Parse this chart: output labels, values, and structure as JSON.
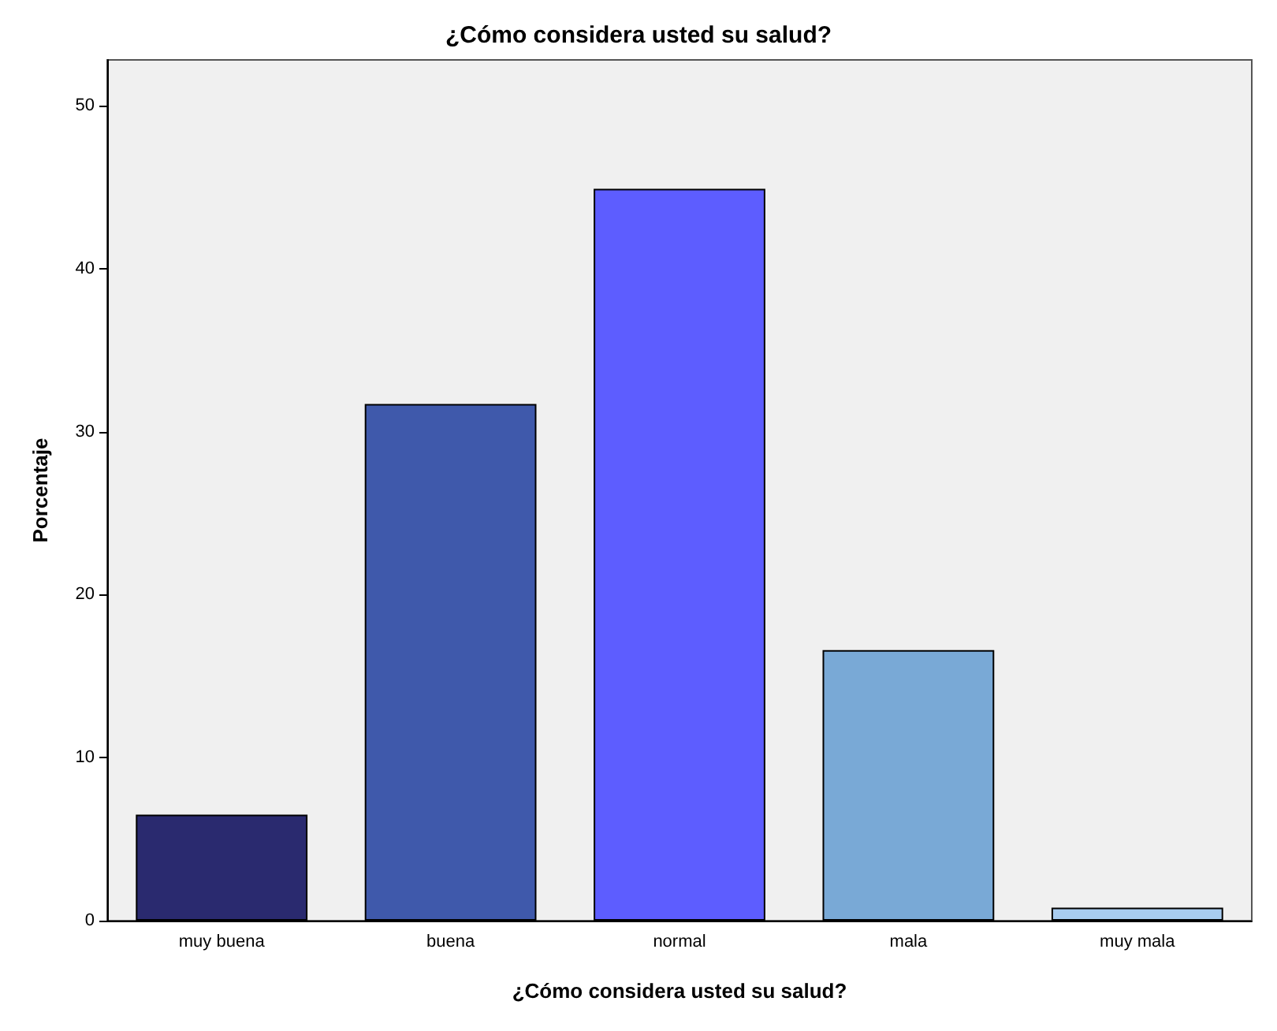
{
  "chart_data": {
    "type": "bar",
    "title": "¿Cómo considera usted su salud?",
    "xlabel": "¿Cómo considera usted su salud?",
    "ylabel": "Porcentaje",
    "categories": [
      "muy buena",
      "buena",
      "normal",
      "mala",
      "muy mala"
    ],
    "values": [
      6.5,
      31.7,
      44.9,
      16.6,
      0.8
    ],
    "colors": [
      "#2a2a6f",
      "#3f59ab",
      "#5d5dff",
      "#79a9d6",
      "#a9cdf0"
    ],
    "ylim": [
      0,
      52.8
    ],
    "yticks": [
      0,
      10,
      20,
      30,
      40,
      50
    ],
    "grid": false
  }
}
